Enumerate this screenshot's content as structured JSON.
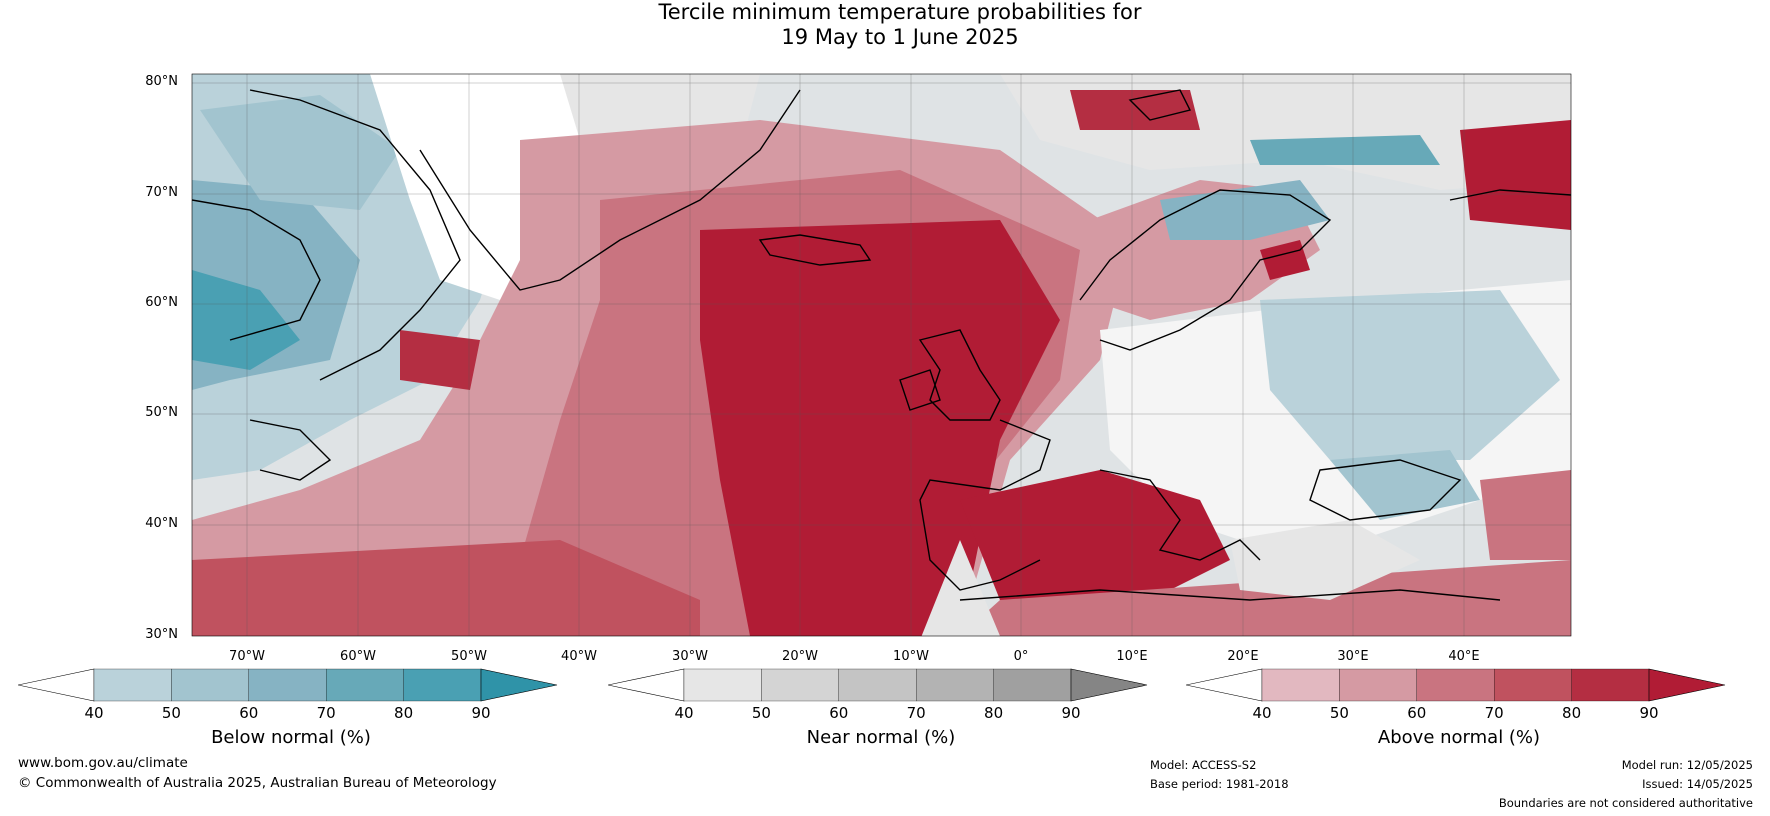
{
  "title_line1": "Tercile minimum temperature probabilities for",
  "title_line2": "19 May to 1 June 2025",
  "lat_labels": [
    "80°N",
    "70°N",
    "60°N",
    "50°N",
    "40°N",
    "30°N"
  ],
  "lon_labels": [
    "70°W",
    "60°W",
    "50°W",
    "40°W",
    "30°W",
    "20°W",
    "10°W",
    "0°",
    "10°E",
    "20°E",
    "30°E",
    "40°E"
  ],
  "colorbars": [
    {
      "label": "Below normal (%)",
      "ticks": [
        "40",
        "50",
        "60",
        "70",
        "80",
        "90"
      ],
      "colors": [
        "#ffffff",
        "#bad2da",
        "#a2c4cf",
        "#86b3c3",
        "#67a9b8",
        "#4aa0b3",
        "#2f93a8"
      ]
    },
    {
      "label": "Near normal (%)",
      "ticks": [
        "40",
        "50",
        "60",
        "70",
        "80",
        "90"
      ],
      "colors": [
        "#ffffff",
        "#e6e6e6",
        "#d4d4d4",
        "#c4c4c4",
        "#b3b3b3",
        "#a0a0a0",
        "#858585"
      ]
    },
    {
      "label": "Above normal (%)",
      "ticks": [
        "40",
        "50",
        "60",
        "70",
        "80",
        "90"
      ],
      "colors": [
        "#ffffff",
        "#e2b8c0",
        "#d59aa3",
        "#c97480",
        "#c0525f",
        "#b42e42",
        "#b11c35"
      ]
    }
  ],
  "footer": {
    "url": "www.bom.gov.au/climate",
    "copyright": "© Commonwealth of Australia 2025, Australian Bureau of Meteorology",
    "model": "Model: ACCESS-S2",
    "base_period": "Base period: 1981-2018",
    "model_run": "Model run: 12/05/2025",
    "issued": "Issued: 14/05/2025",
    "disclaimer": "Boundaries are not considered authoritative"
  }
}
